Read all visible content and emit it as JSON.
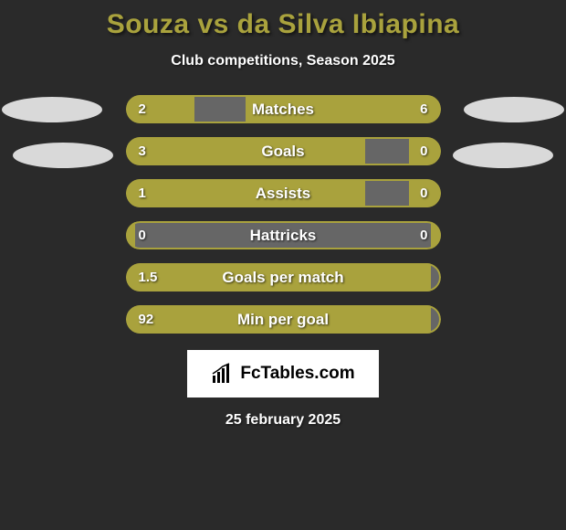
{
  "title": "Souza vs da Silva Ibiapina",
  "title_color": "#a9a23d",
  "subtitle": "Club competitions, Season 2025",
  "background_color": "#2a2a2a",
  "oval_color": "#d9d9d9",
  "logo_text": "FcTables.com",
  "date_text": "25 february 2025",
  "bar_left_color": "#a9a23d",
  "bar_right_color": "#a9a23d",
  "bar_bg_color": "#666666",
  "stats": [
    {
      "label": "Matches",
      "left_val": "2",
      "right_val": "6",
      "left_pct": 22,
      "right_pct": 62
    },
    {
      "label": "Goals",
      "left_val": "3",
      "right_val": "0",
      "left_pct": 76,
      "right_pct": 10
    },
    {
      "label": "Assists",
      "left_val": "1",
      "right_val": "0",
      "left_pct": 76,
      "right_pct": 10
    },
    {
      "label": "Hattricks",
      "left_val": "0",
      "right_val": "0",
      "left_pct": 3,
      "right_pct": 3
    },
    {
      "label": "Goals per match",
      "left_val": "1.5",
      "right_val": "",
      "left_pct": 97,
      "right_pct": 0
    },
    {
      "label": "Min per goal",
      "left_val": "92",
      "right_val": "",
      "left_pct": 97,
      "right_pct": 0
    }
  ]
}
